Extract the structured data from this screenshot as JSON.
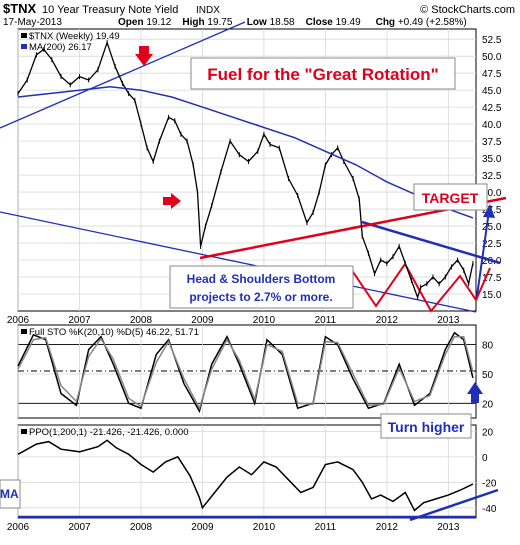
{
  "header": {
    "symbol": "$TNX",
    "name": "10 Year Treasury Note Yield",
    "exchange": "INDX",
    "credit": "© StockCharts.com",
    "date": "17-May-2013",
    "stats": [
      {
        "label": "Open",
        "value": "19.12"
      },
      {
        "label": "High",
        "value": "19.75"
      },
      {
        "label": "Low",
        "value": "18.58"
      },
      {
        "label": "Close",
        "value": "19.49"
      },
      {
        "label": "Chg",
        "value": "+0.49 (+2.58%)"
      }
    ]
  },
  "chart_data": [
    {
      "type": "line",
      "panel": "price",
      "legend": [
        {
          "text": "$TNX (Weekly) 19.49",
          "color": "#000000"
        },
        {
          "text": "MA(200) 26.17",
          "color": "#1f2fb8"
        }
      ],
      "yticks": [
        "52.5",
        "50.0",
        "47.5",
        "45.0",
        "42.5",
        "40.0",
        "37.5",
        "35.0",
        "32.5",
        "30.0",
        "27.5",
        "25.0",
        "22.5",
        "20.0",
        "17.5",
        "15.0"
      ],
      "ylim": [
        12.5,
        54
      ],
      "xticks": [
        "2006",
        "2007",
        "2008",
        "2009",
        "2010",
        "2011",
        "2012",
        "2013"
      ],
      "xlim": [
        2006.0,
        2013.45
      ],
      "series": [
        {
          "name": "$TNX (Weekly)",
          "color": "#000000",
          "x": [
            2006.0,
            2006.15,
            2006.3,
            2006.42,
            2006.55,
            2006.7,
            2006.85,
            2007.0,
            2007.15,
            2007.3,
            2007.45,
            2007.58,
            2007.7,
            2007.8,
            2007.9,
            2008.0,
            2008.1,
            2008.2,
            2008.3,
            2008.45,
            2008.55,
            2008.65,
            2008.75,
            2008.85,
            2008.92,
            2008.97,
            2009.05,
            2009.15,
            2009.3,
            2009.45,
            2009.6,
            2009.75,
            2009.9,
            2010.0,
            2010.1,
            2010.25,
            2010.4,
            2010.55,
            2010.7,
            2010.8,
            2010.9,
            2011.0,
            2011.1,
            2011.2,
            2011.3,
            2011.45,
            2011.55,
            2011.6,
            2011.7,
            2011.8,
            2011.9,
            2012.0,
            2012.1,
            2012.2,
            2012.3,
            2012.4,
            2012.5,
            2012.55,
            2012.65,
            2012.75,
            2012.85,
            2012.95,
            2013.05,
            2013.15,
            2013.25,
            2013.33,
            2013.4
          ],
          "y": [
            44.5,
            46.5,
            50.2,
            51.0,
            49.5,
            47.0,
            45.8,
            47.0,
            46.5,
            48.0,
            52.0,
            48.5,
            46.0,
            44.5,
            43.5,
            40.0,
            36.5,
            34.5,
            37.5,
            41.0,
            40.5,
            38.5,
            37.5,
            34.0,
            30.0,
            22.0,
            25.0,
            28.0,
            33.0,
            37.5,
            35.5,
            34.5,
            36.0,
            38.5,
            37.0,
            36.5,
            32.0,
            29.5,
            25.5,
            27.0,
            30.0,
            34.0,
            35.5,
            36.5,
            34.5,
            32.0,
            29.0,
            23.5,
            21.0,
            18.0,
            20.0,
            19.5,
            20.5,
            22.0,
            19.5,
            17.0,
            14.5,
            16.0,
            16.5,
            17.5,
            16.5,
            17.5,
            19.0,
            20.0,
            18.5,
            16.5,
            19.5
          ]
        },
        {
          "name": "MA(200)",
          "color": "#1f2fb8",
          "x": [
            2006.0,
            2006.5,
            2007.0,
            2007.5,
            2008.0,
            2008.5,
            2009.0,
            2009.5,
            2010.0,
            2010.5,
            2011.0,
            2011.5,
            2012.0,
            2012.5,
            2013.0,
            2013.4
          ],
          "y": [
            44.0,
            44.5,
            45.0,
            45.5,
            45.0,
            44.0,
            42.5,
            41.0,
            39.5,
            38.0,
            36.0,
            34.0,
            31.5,
            29.5,
            27.5,
            26.2
          ]
        }
      ],
      "annotations": [
        {
          "text": "Fuel for the \"Great Rotation\"",
          "color": "#e0001b"
        },
        {
          "text": "TARGET",
          "color": "#e0001b"
        },
        {
          "text": "Head & Shoulders Bottom",
          "color": "#1f2fb8"
        },
        {
          "text": "projects to 2.7% or more.",
          "color": "#1f2fb8"
        }
      ]
    },
    {
      "type": "line",
      "panel": "stochastic",
      "legend": [
        {
          "text": "Full STO %K(20,10) %D(5) 46.22, 51.71",
          "color": "#000000"
        }
      ],
      "yticks": [
        "80",
        "50",
        "20"
      ],
      "ylim": [
        5,
        100
      ],
      "series": [
        {
          "name": "%K",
          "color": "#000000",
          "x": [
            2006.0,
            2006.25,
            2006.45,
            2006.7,
            2006.95,
            2007.15,
            2007.35,
            2007.55,
            2007.8,
            2008.0,
            2008.25,
            2008.45,
            2008.7,
            2008.95,
            2009.15,
            2009.4,
            2009.6,
            2009.85,
            2010.05,
            2010.3,
            2010.55,
            2010.8,
            2011.0,
            2011.2,
            2011.45,
            2011.7,
            2011.95,
            2012.2,
            2012.45,
            2012.7,
            2012.95,
            2013.1,
            2013.25,
            2013.4
          ],
          "y": [
            58,
            90,
            85,
            30,
            18,
            75,
            88,
            60,
            20,
            15,
            70,
            85,
            40,
            12,
            60,
            88,
            60,
            20,
            85,
            70,
            15,
            20,
            88,
            80,
            45,
            15,
            20,
            60,
            18,
            30,
            75,
            92,
            85,
            46
          ]
        },
        {
          "name": "%D",
          "color": "#888888",
          "x": [
            2006.0,
            2006.25,
            2006.45,
            2006.7,
            2006.95,
            2007.15,
            2007.35,
            2007.55,
            2007.8,
            2008.0,
            2008.25,
            2008.45,
            2008.7,
            2008.95,
            2009.15,
            2009.4,
            2009.6,
            2009.85,
            2010.05,
            2010.3,
            2010.55,
            2010.8,
            2011.0,
            2011.2,
            2011.45,
            2011.7,
            2011.95,
            2012.2,
            2012.45,
            2012.7,
            2012.95,
            2013.1,
            2013.25,
            2013.4
          ],
          "y": [
            55,
            85,
            87,
            38,
            22,
            68,
            86,
            65,
            25,
            17,
            62,
            83,
            45,
            15,
            55,
            85,
            64,
            24,
            80,
            73,
            20,
            19,
            83,
            82,
            50,
            18,
            19,
            56,
            22,
            28,
            70,
            88,
            88,
            52
          ]
        }
      ],
      "annotations": [
        {
          "text": "Turn higher",
          "color": "#1f2fb8"
        }
      ]
    },
    {
      "type": "line",
      "panel": "ppo",
      "legend": [
        {
          "text": "PPO(1,200,1) -21.426, -21.426, 0.000",
          "color": "#000000"
        }
      ],
      "yticks": [
        "20",
        "0",
        "-20",
        "-40"
      ],
      "ylim": [
        -48,
        25
      ],
      "xticks": [
        "2006",
        "2007",
        "2008",
        "2009",
        "2010",
        "2011",
        "2012",
        "2013"
      ],
      "series": [
        {
          "name": "PPO",
          "color": "#000000",
          "x": [
            2006.0,
            2006.3,
            2006.5,
            2006.7,
            2007.0,
            2007.3,
            2007.45,
            2007.6,
            2007.8,
            2008.0,
            2008.2,
            2008.4,
            2008.6,
            2008.8,
            2008.95,
            2009.0,
            2009.2,
            2009.4,
            2009.6,
            2009.8,
            2010.0,
            2010.2,
            2010.4,
            2010.6,
            2010.8,
            2011.0,
            2011.2,
            2011.45,
            2011.6,
            2011.75,
            2011.9,
            2012.1,
            2012.3,
            2012.45,
            2012.6,
            2012.8,
            2013.0,
            2013.2,
            2013.4
          ],
          "y": [
            2,
            10,
            12,
            6,
            4,
            8,
            13,
            7,
            2,
            -6,
            -12,
            -4,
            0,
            -15,
            -32,
            -40,
            -28,
            -16,
            -8,
            -14,
            -4,
            -8,
            -18,
            -28,
            -24,
            -6,
            -4,
            -10,
            -20,
            -33,
            -30,
            -35,
            -28,
            -42,
            -36,
            -33,
            -30,
            -26,
            -21.4
          ]
        }
      ],
      "annotations": [
        {
          "text": "MA",
          "color": "#1f2fb8"
        }
      ]
    }
  ]
}
